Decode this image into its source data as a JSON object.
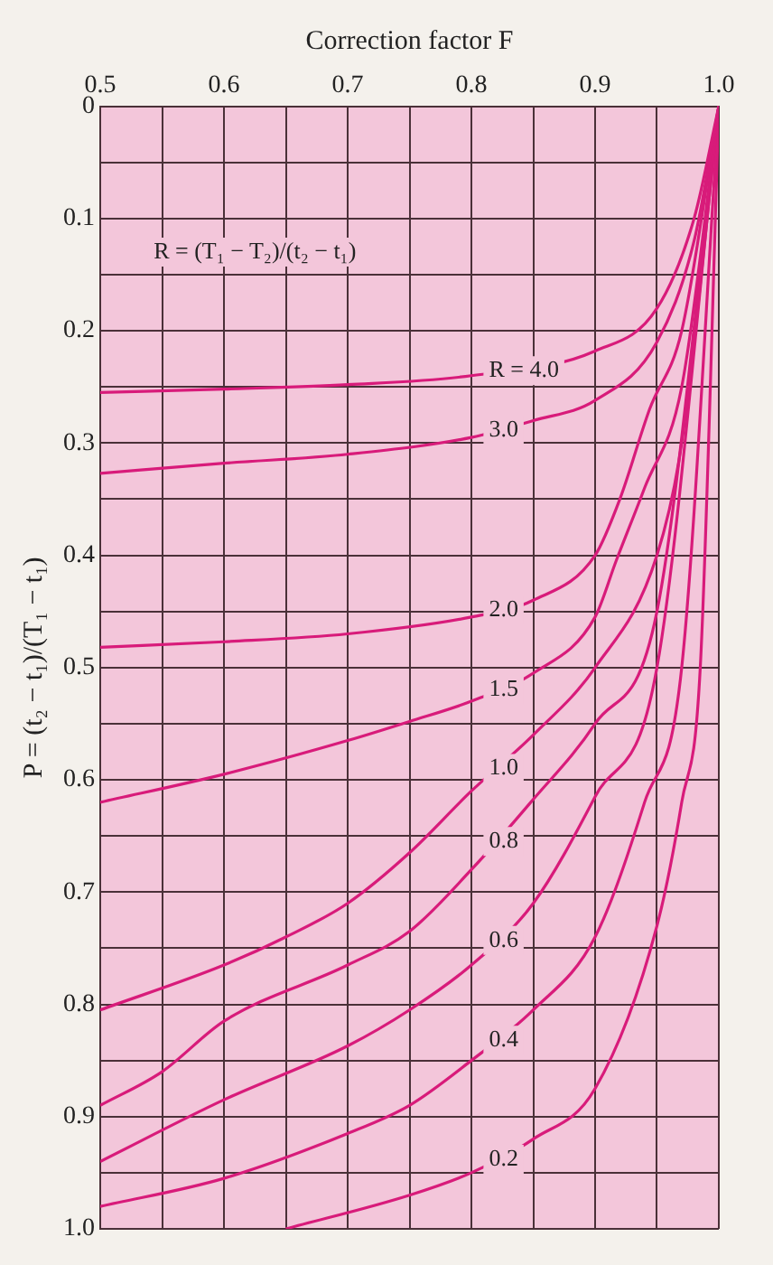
{
  "chart_data": {
    "type": "line",
    "xlabel": "Correction factor F",
    "ylabel": "P = (t₂ − t₁)/(T₁ − t₁)",
    "annotations": [
      "R = (T₁ − T₂)/(t₂ − t₁)"
    ],
    "xlim": [
      0.5,
      1.0
    ],
    "xticks": [
      0.5,
      {
        "value": 0.55,
        "label": null
      },
      0.6,
      {
        "value": 0.65,
        "label": null
      },
      0.7,
      {
        "value": 0.75,
        "label": null
      },
      0.8,
      {
        "value": 0.85,
        "label": null
      },
      0.9,
      {
        "value": 0.95,
        "label": null
      },
      {
        "value": 1,
        "label": "1.0"
      }
    ],
    "ylim": [
      1.0,
      0
    ],
    "yticks": [
      0,
      {
        "value": 0.05,
        "label": null
      },
      0.1,
      {
        "value": 0.15,
        "label": null
      },
      0.2,
      {
        "value": 0.25,
        "label": null
      },
      0.3,
      {
        "value": 0.35,
        "label": null
      },
      0.4,
      {
        "value": 0.45,
        "label": null
      },
      0.5,
      {
        "value": 0.55,
        "label": null
      },
      0.6,
      {
        "value": 0.65,
        "label": null
      },
      0.7,
      {
        "value": 0.75,
        "label": null
      },
      0.8,
      {
        "value": 0.85,
        "label": null
      },
      0.9,
      {
        "value": 0.95,
        "label": null
      },
      {
        "value": 1,
        "label": "1.0"
      }
    ],
    "grid": true,
    "legend": false,
    "marker": "none",
    "line_style": "solid",
    "series": [
      {
        "name": "R = 4.0",
        "color": "#d81b7a",
        "x": [
          1,
          0.98,
          0.95,
          0.9,
          0.8,
          0.7,
          0.6,
          0.5
        ],
        "values": [
          0,
          0.1,
          0.18,
          0.218,
          0.24,
          0.248,
          0.252,
          0.255
        ]
      },
      {
        "name": "3.0",
        "color": "#d81b7a",
        "x": [
          1,
          0.98,
          0.95,
          0.9,
          0.85,
          0.8,
          0.7,
          0.6,
          0.5
        ],
        "values": [
          0,
          0.12,
          0.21,
          0.262,
          0.28,
          0.295,
          0.31,
          0.318,
          0.327
        ]
      },
      {
        "name": "2.0",
        "color": "#d81b7a",
        "x": [
          1,
          0.97,
          0.944,
          0.92,
          0.9,
          0.85,
          0.8,
          0.7,
          0.6,
          0.5
        ],
        "values": [
          0,
          0.2,
          0.27,
          0.35,
          0.4,
          0.44,
          0.455,
          0.47,
          0.477,
          0.482
        ]
      },
      {
        "name": "1.5",
        "color": "#d81b7a",
        "x": [
          1,
          0.97,
          0.94,
          0.917,
          0.9,
          0.85,
          0.8,
          0.75,
          0.7,
          0.6,
          0.5
        ],
        "values": [
          0,
          0.25,
          0.34,
          0.405,
          0.455,
          0.505,
          0.53,
          0.548,
          0.565,
          0.595,
          0.62
        ]
      },
      {
        "name": "1.0",
        "color": "#d81b7a",
        "x": [
          1,
          0.97,
          0.95,
          0.9,
          0.85,
          0.8,
          0.75,
          0.7,
          0.65,
          0.6,
          0.5
        ],
        "values": [
          0,
          0.3,
          0.4,
          0.5,
          0.56,
          0.61,
          0.665,
          0.71,
          0.74,
          0.765,
          0.805
        ]
      },
      {
        "name": "0.8",
        "color": "#d81b7a",
        "x": [
          1,
          0.95,
          0.9,
          0.848,
          0.8,
          0.75,
          0.7,
          0.6,
          0.55,
          0.5
        ],
        "values": [
          0,
          0.45,
          0.55,
          0.62,
          0.68,
          0.735,
          0.765,
          0.815,
          0.86,
          0.89
        ]
      },
      {
        "name": "0.6",
        "color": "#d81b7a",
        "x": [
          1,
          0.95,
          0.9,
          0.85,
          0.8,
          0.75,
          0.7,
          0.6,
          0.5
        ],
        "values": [
          0,
          0.5,
          0.615,
          0.71,
          0.765,
          0.805,
          0.837,
          0.885,
          0.94
        ]
      },
      {
        "name": "0.4",
        "color": "#d81b7a",
        "x": [
          1,
          0.97,
          0.94,
          0.9,
          0.85,
          0.8,
          0.75,
          0.7,
          0.6,
          0.5
        ],
        "values": [
          0,
          0.5,
          0.62,
          0.74,
          0.805,
          0.85,
          0.89,
          0.915,
          0.955,
          0.98
        ]
      },
      {
        "name": "0.2",
        "color": "#d81b7a",
        "x": [
          1,
          0.985,
          0.97,
          0.95,
          0.9,
          0.85,
          0.8,
          0.75,
          0.65
        ],
        "values": [
          0,
          0.5,
          0.62,
          0.73,
          0.875,
          0.92,
          0.95,
          0.97,
          1.0
        ]
      }
    ]
  }
}
